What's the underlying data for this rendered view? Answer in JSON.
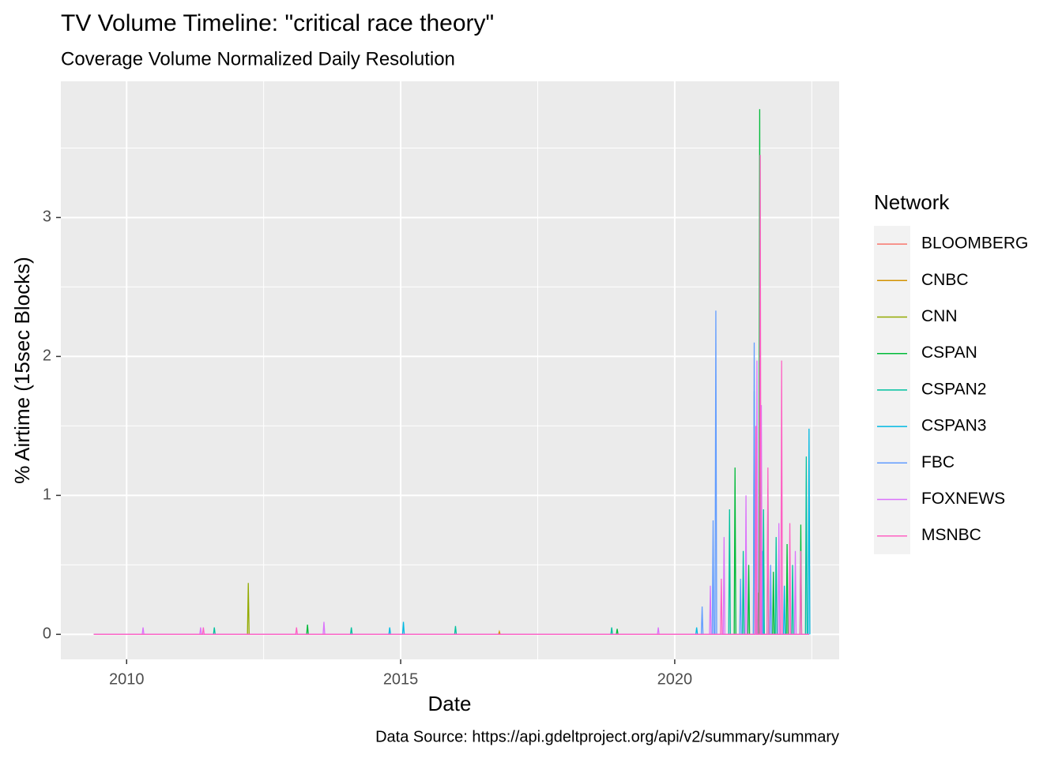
{
  "chart_data": {
    "type": "line",
    "title": "TV Volume Timeline: \"critical race theory\"",
    "subtitle": "Coverage Volume Normalized Daily Resolution",
    "x_label": "Date",
    "y_label": "% Airtime (15sec Blocks)",
    "caption": "Data Source: https://api.gdeltproject.org/api/v2/summary/summary",
    "legend_title": "Network",
    "legend_position": "right",
    "grid": true,
    "xlim": [
      2008.8,
      2023.0
    ],
    "xticks": [
      2010,
      2015,
      2020
    ],
    "ylim": [
      -0.18,
      3.98
    ],
    "yticks": [
      0,
      1,
      2,
      3
    ],
    "series": [
      {
        "name": "BLOOMBERG",
        "color": "#F8766D",
        "x": [
          2009.4,
          2021.5,
          2021.515,
          2021.53,
          2022.45
        ],
        "values": [
          0,
          0,
          0.1,
          0,
          0
        ]
      },
      {
        "name": "CNBC",
        "color": "#D39200",
        "x": [
          2009.4,
          2016.785,
          2016.8,
          2016.815,
          2021.555,
          2021.57,
          2021.585,
          2022.45
        ],
        "values": [
          0,
          0,
          0.02,
          0,
          0,
          0.08,
          0,
          0
        ]
      },
      {
        "name": "CNN",
        "color": "#93AA00",
        "x": [
          2009.4,
          2012.205,
          2012.22,
          2012.235,
          2021.505,
          2021.52,
          2021.535,
          2022.45
        ],
        "values": [
          0,
          0,
          0.37,
          0,
          0,
          0.3,
          0,
          0
        ]
      },
      {
        "name": "CSPAN",
        "color": "#00BA38",
        "x": [
          2009.4,
          2013.285,
          2013.3,
          2013.315,
          2018.935,
          2018.95,
          2018.965,
          2021.085,
          2021.1,
          2021.115,
          2021.335,
          2021.35,
          2021.365,
          2021.535,
          2021.55,
          2021.565,
          2021.685,
          2021.7,
          2021.715,
          2021.785,
          2021.8,
          2021.815,
          2022.035,
          2022.05,
          2022.065,
          2022.285,
          2022.3,
          2022.315,
          2022.45
        ],
        "values": [
          0,
          0,
          0.07,
          0,
          0,
          0.04,
          0,
          0,
          1.2,
          0,
          0,
          0.5,
          0,
          0,
          3.78,
          0,
          0,
          1.05,
          0,
          0,
          0.45,
          0,
          0,
          0.65,
          0,
          0,
          0.79,
          0,
          0
        ]
      },
      {
        "name": "CSPAN2",
        "color": "#00C19F",
        "x": [
          2009.4,
          2011.585,
          2011.6,
          2011.615,
          2014.085,
          2014.1,
          2014.115,
          2015.985,
          2016.0,
          2016.015,
          2018.835,
          2018.85,
          2018.865,
          2020.985,
          2021.0,
          2021.015,
          2021.235,
          2021.25,
          2021.265,
          2021.435,
          2021.45,
          2021.465,
          2021.605,
          2021.62,
          2021.635,
          2021.835,
          2021.85,
          2021.865,
          2022.135,
          2022.15,
          2022.165,
          2022.385,
          2022.4,
          2022.415,
          2022.45
        ],
        "values": [
          0,
          0,
          0.05,
          0,
          0,
          0.05,
          0,
          0,
          0.06,
          0,
          0,
          0.05,
          0,
          0,
          0.9,
          0,
          0,
          0.6,
          0,
          0,
          1.75,
          0,
          0,
          0.9,
          0,
          0,
          0.7,
          0,
          0,
          0.5,
          0,
          0,
          1.28,
          0,
          0
        ]
      },
      {
        "name": "CSPAN3",
        "color": "#00B9E3",
        "x": [
          2009.4,
          2014.785,
          2014.8,
          2014.815,
          2015.035,
          2015.05,
          2015.065,
          2020.385,
          2020.4,
          2020.415,
          2021.585,
          2021.6,
          2021.615,
          2021.985,
          2022.0,
          2022.015,
          2022.435,
          2022.45,
          2022.465
        ],
        "values": [
          0,
          0,
          0.05,
          0,
          0,
          0.09,
          0,
          0,
          0.05,
          0,
          0,
          0.6,
          0,
          0,
          0.35,
          0,
          0,
          1.48,
          0
        ]
      },
      {
        "name": "FBC",
        "color": "#619CFF",
        "x": [
          2009.4,
          2020.485,
          2020.5,
          2020.515,
          2020.685,
          2020.7,
          2020.715,
          2020.735,
          2020.75,
          2020.765,
          2021.185,
          2021.2,
          2021.215,
          2021.435,
          2021.45,
          2021.465,
          2021.735,
          2021.75,
          2021.765,
          2022.45
        ],
        "values": [
          0,
          0,
          0.2,
          0,
          0,
          0.82,
          0,
          0,
          2.33,
          0,
          0,
          0.4,
          0,
          0,
          2.1,
          0,
          0,
          0.5,
          0,
          0
        ]
      },
      {
        "name": "FOXNEWS",
        "color": "#DB72FB",
        "x": [
          2009.4,
          2010.285,
          2010.3,
          2010.315,
          2011.335,
          2011.35,
          2011.365,
          2013.585,
          2013.6,
          2013.615,
          2019.685,
          2019.7,
          2019.715,
          2020.635,
          2020.65,
          2020.665,
          2020.885,
          2020.9,
          2020.915,
          2021.285,
          2021.3,
          2021.315,
          2021.485,
          2021.5,
          2021.515,
          2021.565,
          2021.58,
          2021.595,
          2021.885,
          2021.9,
          2021.915,
          2022.185,
          2022.2,
          2022.215,
          2022.45
        ],
        "values": [
          0,
          0,
          0.05,
          0,
          0,
          0.05,
          0,
          0,
          0.09,
          0,
          0,
          0.05,
          0,
          0,
          0.35,
          0,
          0,
          0.7,
          0,
          0,
          1.0,
          0,
          0,
          1.97,
          0,
          0,
          1.65,
          0,
          0,
          0.8,
          0,
          0,
          0.6,
          0,
          0
        ]
      },
      {
        "name": "MSNBC",
        "color": "#FF61C3",
        "x": [
          2009.4,
          2011.385,
          2011.4,
          2011.415,
          2013.085,
          2013.1,
          2013.115,
          2020.835,
          2020.85,
          2020.865,
          2021.465,
          2021.48,
          2021.495,
          2021.545,
          2021.56,
          2021.575,
          2021.685,
          2021.7,
          2021.715,
          2021.935,
          2021.95,
          2021.965,
          2022.085,
          2022.1,
          2022.115,
          2022.285,
          2022.3,
          2022.315,
          2022.45
        ],
        "values": [
          0,
          0,
          0.05,
          0,
          0,
          0.05,
          0,
          0,
          0.4,
          0,
          0,
          1.5,
          0,
          0,
          3.45,
          0,
          0,
          1.2,
          0,
          0,
          1.97,
          0,
          0,
          0.8,
          0,
          0,
          0.6,
          0,
          0
        ]
      }
    ]
  }
}
